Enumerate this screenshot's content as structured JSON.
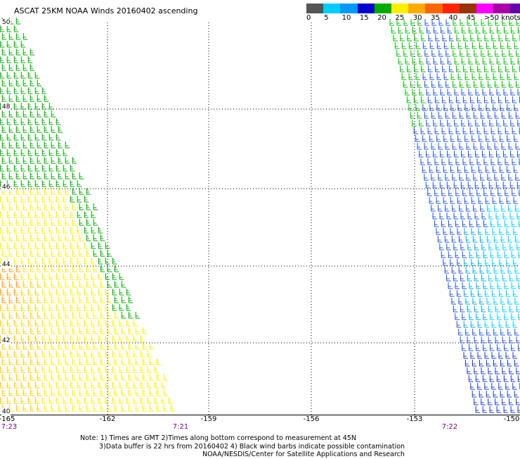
{
  "title": "ASCAT 25KM NOAA Winds 20160402 ascending",
  "legend": {
    "colors": [
      "#555555",
      "#00ccff",
      "#0099ff",
      "#0000cc",
      "#00aa00",
      "#ffee00",
      "#ffaa00",
      "#ff6600",
      "#ff2200",
      "#993300",
      "#ff00ff",
      "#aa00aa",
      "#6600aa"
    ],
    "labels": [
      "0",
      "5",
      "10",
      "15",
      "20",
      "25",
      "30",
      "35",
      "40",
      "45",
      ">50 knots"
    ]
  },
  "lat_labels": [
    "50",
    "48",
    "46",
    "44",
    "42",
    "40"
  ],
  "lon_labels": [
    "-165",
    "-162",
    "-159",
    "-156",
    "-153",
    "-150"
  ],
  "time_labels": [
    "7:23",
    "7:21",
    "7:22"
  ],
  "note_lines": [
    "Note: 1) Times are GMT 2)Times along bottom correspond to measurement at 45N",
    "3)Data buffer is 22 hrs from 20160402 4) Black wind barbs indicate possible contamination",
    "NOAA/NESDIS/Center for Satellite Applications and Research"
  ]
}
